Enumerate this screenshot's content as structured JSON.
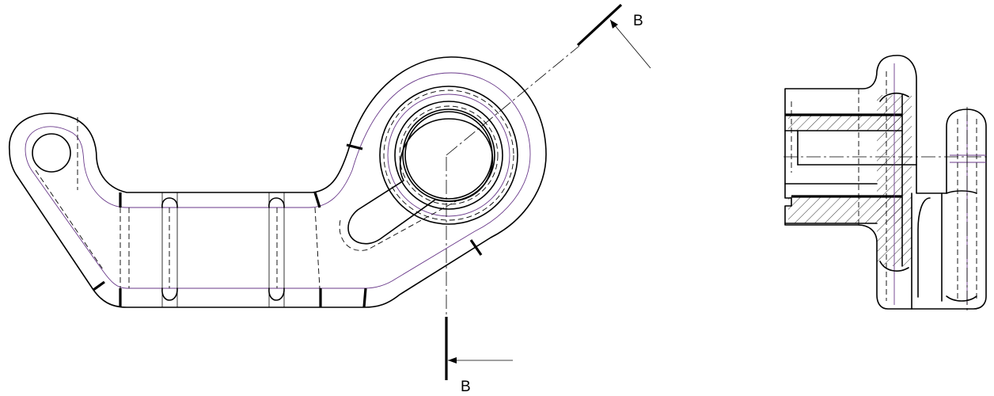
{
  "section_marks": {
    "top_label": "B",
    "bottom_label": "B"
  },
  "colors": {
    "line": "#000000",
    "tangent_edge": "#6a3a8a",
    "background": "#ffffff"
  }
}
